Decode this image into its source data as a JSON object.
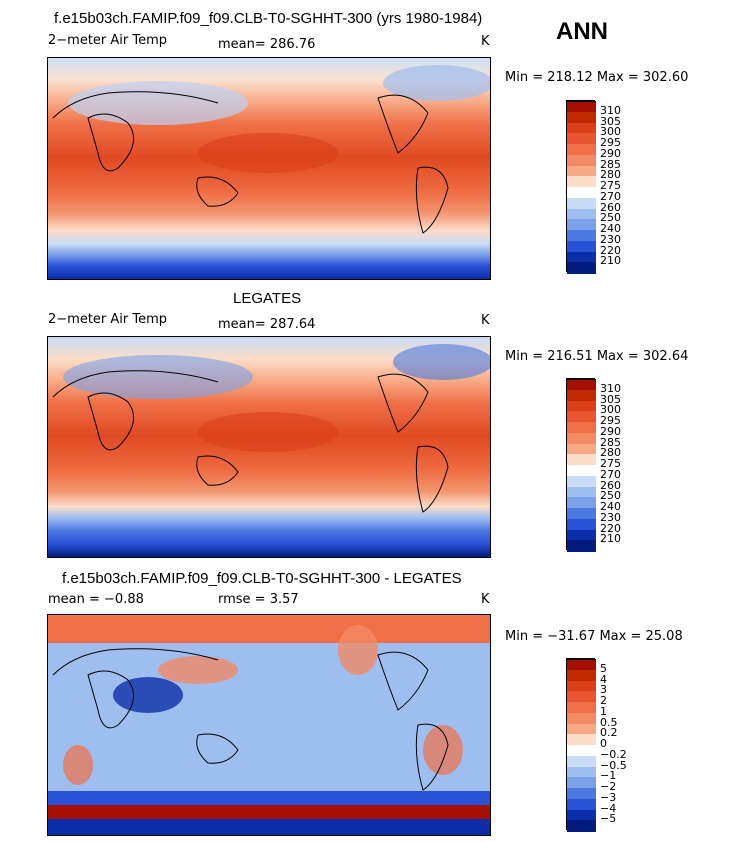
{
  "season": "ANN",
  "panels": [
    {
      "title": "f.e15b03ch.FAMIP.f09_f09.CLB-T0-SGHHT-300 (yrs 1980-1984)",
      "left_label": "2−meter Air Temp",
      "mid_label": "mean=  286.76",
      "unit": "K",
      "minmax": "Min = 218.12 Max = 302.60",
      "levels": [
        "310",
        "305",
        "300",
        "295",
        "290",
        "285",
        "280",
        "275",
        "270",
        "260",
        "250",
        "240",
        "230",
        "220",
        "210"
      ],
      "colors": [
        "#a50f00",
        "#c02a00",
        "#d9401a",
        "#e85530",
        "#ef7048",
        "#f28a66",
        "#f7a985",
        "#fbdcc8",
        "#ffffff",
        "#c9dcf5",
        "#9fbef0",
        "#7ba1ea",
        "#4d7ae0",
        "#2a52d6",
        "#0b2fa8",
        "#031b7e"
      ]
    },
    {
      "title": "LEGATES",
      "left_label": "2−meter Air Temp",
      "mid_label": "mean=  287.64",
      "unit": "K",
      "minmax": "Min = 216.51 Max = 302.64",
      "levels": [
        "310",
        "305",
        "300",
        "295",
        "290",
        "285",
        "280",
        "275",
        "270",
        "260",
        "250",
        "240",
        "230",
        "220",
        "210"
      ],
      "colors": [
        "#a50f00",
        "#c02a00",
        "#d9401a",
        "#e85530",
        "#ef7048",
        "#f28a66",
        "#f7a985",
        "#fbdcc8",
        "#ffffff",
        "#c9dcf5",
        "#9fbef0",
        "#7ba1ea",
        "#4d7ae0",
        "#2a52d6",
        "#0b2fa8",
        "#031b7e"
      ]
    },
    {
      "title": "f.e15b03ch.FAMIP.f09_f09.CLB-T0-SGHHT-300 - LEGATES",
      "left_label": "mean =   −0.88",
      "mid_label": "rmse =    3.57",
      "unit": "K",
      "minmax": "Min = −31.67 Max =  25.08",
      "levels": [
        "5",
        "4",
        "3",
        "2",
        "1",
        "0.5",
        "0.2",
        "0",
        "−0.2",
        "−0.5",
        "−1",
        "−2",
        "−3",
        "−4",
        "−5"
      ],
      "colors": [
        "#a50f00",
        "#c02a00",
        "#d9401a",
        "#e85530",
        "#ef7048",
        "#f28a66",
        "#f7a985",
        "#fbdcc8",
        "#ffffff",
        "#c9dcf5",
        "#9fbef0",
        "#7ba1ea",
        "#4d7ae0",
        "#2a52d6",
        "#0b2fa8",
        "#031b7e"
      ]
    }
  ]
}
